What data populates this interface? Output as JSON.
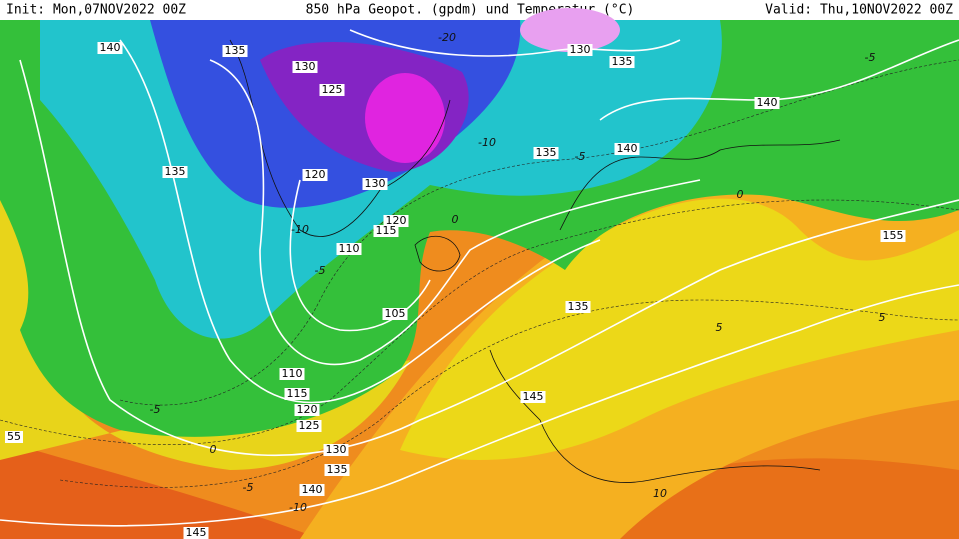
{
  "header": {
    "init": "Init: Mon,07NOV2022 00Z",
    "title": "850 hPa Geopot. (gpdm) und Temperatur (°C)",
    "valid": "Valid: Thu,10NOV2022 00Z"
  },
  "map": {
    "geopotential_labels": [
      "140",
      "135",
      "130",
      "125",
      "135",
      "120",
      "130",
      "120",
      "115",
      "110",
      "105",
      "110",
      "115",
      "120",
      "125",
      "130",
      "135",
      "140",
      "145",
      "145",
      "135",
      "140",
      "135",
      "140",
      "135",
      "130",
      "155",
      "55"
    ],
    "temperature_labels": [
      "-20",
      "-10",
      "-5",
      "0",
      "-5",
      "-10",
      "0",
      "-5",
      "-10",
      "10",
      "5",
      "-5",
      "5",
      "-5",
      "0"
    ]
  }
}
